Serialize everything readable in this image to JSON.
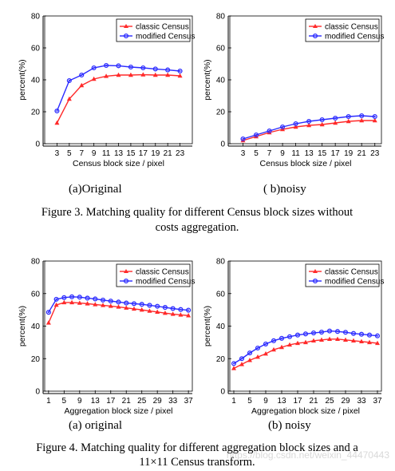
{
  "legend": [
    "classic Census",
    "modified Census"
  ],
  "series_colors": [
    "#ff2a2a",
    "#2a2aff"
  ],
  "ylabel": "percent(%)",
  "figure3": {
    "caption_line1": "Figure 3. Matching quality for different Census block sizes without",
    "caption_line2": "costs aggregation."
  },
  "figure4": {
    "caption_line1": "Figure 4. Matching quality for different aggregation block sizes and a",
    "caption_line2": "11×11 Census transform."
  },
  "watermark": "https://blog.csdn.net/weixin_44470443",
  "chart_data": [
    {
      "type": "line",
      "sublabel": "(a)Original",
      "xlabel": "Census block size / pixel",
      "ylabel": "percent(%)",
      "x": [
        3,
        5,
        7,
        9,
        11,
        13,
        15,
        17,
        19,
        21,
        23
      ],
      "xticks": [
        3,
        5,
        7,
        9,
        11,
        13,
        15,
        17,
        19,
        21,
        23
      ],
      "xlim": [
        1,
        25
      ],
      "ylim": [
        0,
        80
      ],
      "yticks": [
        0,
        20,
        40,
        60,
        80
      ],
      "legend_position": "top-right",
      "series": [
        {
          "name": "classic Census",
          "values": [
            13,
            28,
            36.5,
            40.5,
            42.3,
            43,
            43,
            43.2,
            43,
            43,
            42.5
          ]
        },
        {
          "name": "modified Census",
          "values": [
            20.5,
            39.5,
            43,
            47.5,
            49,
            48.8,
            48,
            47.5,
            46.8,
            46.2,
            45.5
          ]
        }
      ]
    },
    {
      "type": "line",
      "sublabel": "( b)noisy",
      "xlabel": "Census block size / pixel",
      "ylabel": "percent(%)",
      "x": [
        3,
        5,
        7,
        9,
        11,
        13,
        15,
        17,
        19,
        21,
        23
      ],
      "xticks": [
        3,
        5,
        7,
        9,
        11,
        13,
        15,
        17,
        19,
        21,
        23
      ],
      "xlim": [
        1,
        24
      ],
      "ylim": [
        0,
        80
      ],
      "yticks": [
        0,
        20,
        40,
        60,
        80
      ],
      "legend_position": "top-right",
      "series": [
        {
          "name": "classic Census",
          "values": [
            2,
            4.5,
            7,
            9,
            10.5,
            11.5,
            12,
            13,
            14,
            14.5,
            14.5
          ]
        },
        {
          "name": "modified Census",
          "values": [
            3,
            5.5,
            8,
            10.5,
            12.5,
            14,
            15,
            16,
            17,
            17.5,
            17
          ]
        }
      ]
    },
    {
      "type": "line",
      "sublabel": "(a)   original",
      "xlabel": "Aggregation block size / pixel",
      "ylabel": "percent(%)",
      "x": [
        1,
        3,
        5,
        7,
        9,
        11,
        13,
        15,
        17,
        19,
        21,
        23,
        25,
        27,
        29,
        31,
        33,
        35,
        37
      ],
      "xticks": [
        1,
        5,
        9,
        13,
        17,
        21,
        25,
        29,
        33,
        37
      ],
      "xlim": [
        0,
        38
      ],
      "ylim": [
        0,
        80
      ],
      "yticks": [
        0,
        20,
        40,
        60,
        80
      ],
      "legend_position": "top-right",
      "series": [
        {
          "name": "classic Census",
          "values": [
            42,
            53,
            54.5,
            54.5,
            54.2,
            53.8,
            53.3,
            52.8,
            52.3,
            51.8,
            51.2,
            50.6,
            50,
            49.3,
            48.7,
            48,
            47.4,
            46.9,
            46.5
          ]
        },
        {
          "name": "modified Census",
          "values": [
            48.5,
            56.5,
            57.5,
            58,
            57.8,
            57.2,
            56.7,
            56,
            55.4,
            54.8,
            54.2,
            53.8,
            53.4,
            52.8,
            52.2,
            51.5,
            50.8,
            50.2,
            49.8
          ]
        }
      ]
    },
    {
      "type": "line",
      "sublabel": "(b) noisy",
      "xlabel": "Aggregation block size / pixel",
      "ylabel": "percent(%)",
      "x": [
        1,
        3,
        5,
        7,
        9,
        11,
        13,
        15,
        17,
        19,
        21,
        23,
        25,
        27,
        29,
        31,
        33,
        35,
        37
      ],
      "xticks": [
        1,
        5,
        9,
        13,
        17,
        21,
        25,
        29,
        33,
        37
      ],
      "xlim": [
        0,
        38
      ],
      "ylim": [
        0,
        80
      ],
      "yticks": [
        0,
        20,
        40,
        60,
        80
      ],
      "legend_position": "top-right",
      "series": [
        {
          "name": "classic Census",
          "values": [
            14,
            16.5,
            19,
            21,
            23,
            25.5,
            27,
            28.5,
            29.5,
            30,
            31,
            31.5,
            32,
            32,
            31.5,
            31,
            30.5,
            30,
            29.5
          ]
        },
        {
          "name": "modified Census",
          "values": [
            17,
            20,
            23.5,
            26.5,
            29,
            31,
            32.5,
            33.5,
            34.5,
            35.2,
            35.8,
            36.3,
            37,
            36.7,
            36.2,
            35.5,
            35,
            34.5,
            34
          ]
        }
      ]
    }
  ]
}
